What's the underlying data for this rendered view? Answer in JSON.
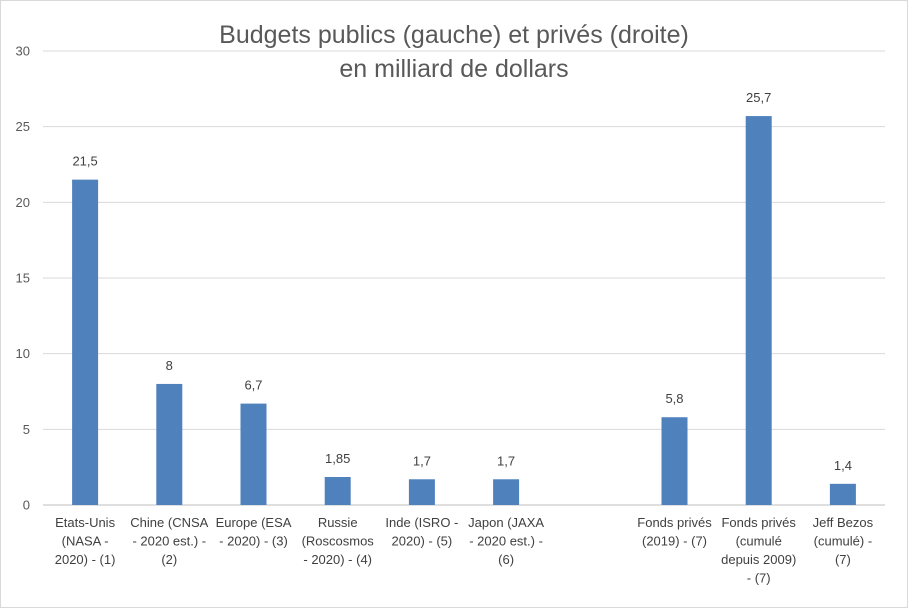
{
  "chart_data": {
    "type": "bar",
    "title": [
      "Budgets publics (gauche) et privés (droite)",
      "en milliard de dollars"
    ],
    "ylim": [
      0,
      30
    ],
    "yticks": [
      0,
      5,
      10,
      15,
      20,
      25,
      30
    ],
    "grid": true,
    "color": "#4f81bd",
    "categories": [
      [
        "Etats-Unis",
        "(NASA -",
        "2020) - (1)"
      ],
      [
        "Chine (CNSA",
        "- 2020 est.) -",
        "(2)"
      ],
      [
        "Europe (ESA",
        "- 2020) - (3)"
      ],
      [
        "Russie",
        "(Roscosmos",
        "- 2020) - (4)"
      ],
      [
        "Inde (ISRO -",
        "2020) - (5)"
      ],
      [
        "Japon (JAXA",
        "- 2020 est.) -",
        "(6)"
      ],
      [],
      [
        "Fonds privés",
        "(2019) - (7)"
      ],
      [
        "Fonds privés",
        "(cumulé",
        "depuis 2009)",
        "- (7)"
      ],
      [
        "Jeff Bezos",
        "(cumulé) -",
        "(7)"
      ]
    ],
    "values": [
      21.5,
      8,
      6.7,
      1.85,
      1.7,
      1.7,
      null,
      5.8,
      25.7,
      1.4
    ],
    "value_labels": [
      "21,5",
      "8",
      "6,7",
      "1,85",
      "1,7",
      "1,7",
      "",
      "5,8",
      "25,7",
      "1,4"
    ]
  }
}
